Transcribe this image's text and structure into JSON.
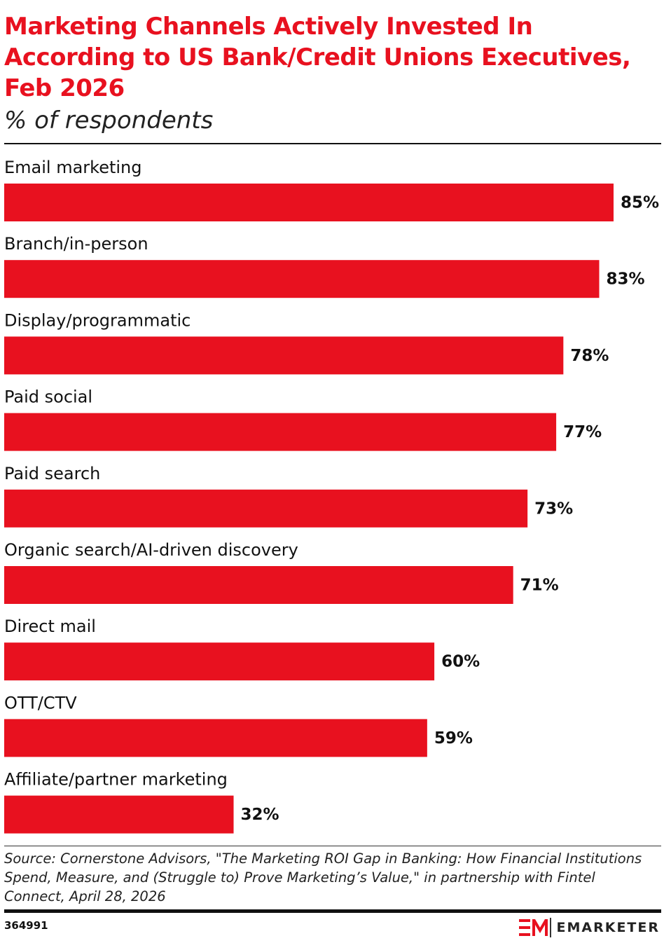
{
  "chart_data": {
    "type": "bar",
    "orientation": "horizontal",
    "title": "Marketing Channels Actively Invested In According to US Bank/Credit Unions Executives, Feb 2026",
    "subtitle": "% of respondents",
    "categories": [
      "Email marketing",
      "Branch/in-person",
      "Display/programmatic",
      "Paid social",
      "Paid search",
      "Organic search/AI-driven discovery",
      "Direct mail",
      "OTT/CTV",
      "Affiliate/partner marketing"
    ],
    "values": [
      85,
      83,
      78,
      77,
      73,
      71,
      60,
      59,
      32
    ],
    "value_labels": [
      "85%",
      "83%",
      "78%",
      "77%",
      "73%",
      "71%",
      "60%",
      "59%",
      "32%"
    ],
    "color": "#e8111f",
    "source": "Source: Cornerstone Advisors, \"The Marketing ROI Gap in Banking: How Financial Institutions Spend, Measure, and (Struggle to) Prove Marketing’s Value,\" in partnership with Fintel Connect, April 28, 2026",
    "chart_id": "364991",
    "brand": "EMARKETER"
  }
}
